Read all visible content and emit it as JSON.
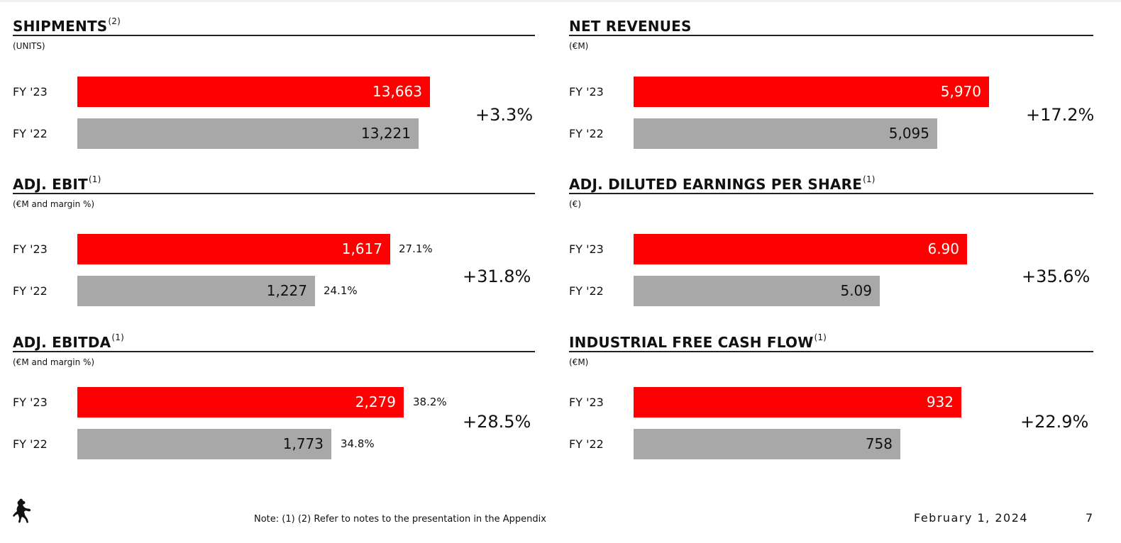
{
  "chart_data": [
    {
      "type": "bar",
      "title": "SHIPMENTS",
      "footnote": "(2)",
      "unit": "(UNITS)",
      "categories": [
        "FY '23",
        "FY '22"
      ],
      "values": [
        13663,
        13221
      ],
      "value_labels": [
        "13,663",
        "13,221"
      ],
      "change": "+3.3%"
    },
    {
      "type": "bar",
      "title": "NET REVENUES",
      "footnote": "",
      "unit": "(€M)",
      "categories": [
        "FY '23",
        "FY '22"
      ],
      "values": [
        5970,
        5095
      ],
      "value_labels": [
        "5,970",
        "5,095"
      ],
      "change": "+17.2%"
    },
    {
      "type": "bar",
      "title": "ADJ. EBIT",
      "footnote": "(1)",
      "unit": "(€M and margin %)",
      "categories": [
        "FY '23",
        "FY '22"
      ],
      "values": [
        1617,
        1227
      ],
      "value_labels": [
        "1,617",
        "1,227"
      ],
      "margins": [
        "27.1%",
        "24.1%"
      ],
      "change": "+31.8%"
    },
    {
      "type": "bar",
      "title": "ADJ. DILUTED EARNINGS PER SHARE",
      "footnote": "(1)",
      "unit": "(€)",
      "categories": [
        "FY '23",
        "FY '22"
      ],
      "values": [
        6.9,
        5.09
      ],
      "value_labels": [
        "6.90",
        "5.09"
      ],
      "change": "+35.6%"
    },
    {
      "type": "bar",
      "title": "ADJ. EBITDA",
      "footnote": "(1)",
      "unit": "(€M and margin %)",
      "categories": [
        "FY '23",
        "FY '22"
      ],
      "values": [
        2279,
        1773
      ],
      "value_labels": [
        "2,279",
        "1,773"
      ],
      "margins": [
        "38.2%",
        "34.8%"
      ],
      "change": "+28.5%"
    },
    {
      "type": "bar",
      "title": "INDUSTRIAL FREE CASH FLOW",
      "footnote": "(1)",
      "unit": "(€M)",
      "categories": [
        "FY '23",
        "FY '22"
      ],
      "values": [
        932,
        758
      ],
      "value_labels": [
        "932",
        "758"
      ],
      "change": "+22.9%"
    }
  ],
  "colors": {
    "current_year": "#ff0000",
    "prior_year": "#a8a8a8"
  },
  "footer": {
    "logo_icon": "prancing-horse-logo",
    "note": "Note: (1) (2) Refer to notes to the presentation in the Appendix",
    "date": "February 1, 2024",
    "page": "7"
  }
}
